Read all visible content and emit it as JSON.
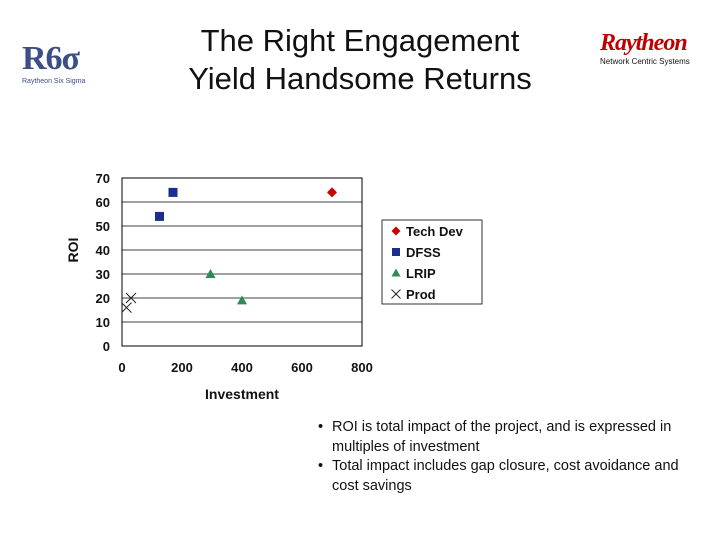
{
  "logo": {
    "mark": "R6σ",
    "subtitle": "Raytheon Six Sigma"
  },
  "title_line1": "The Right Engagement",
  "title_line2": "Yield Handsome Returns",
  "brand": {
    "name": "Raytheon",
    "unit": "Network Centric Systems",
    "color": "#c00000"
  },
  "chart_data": {
    "type": "scatter",
    "xlabel": "Investment",
    "ylabel": "ROI",
    "xlim": [
      0,
      800
    ],
    "ylim": [
      0,
      70
    ],
    "xticks": [
      0,
      200,
      400,
      600,
      800
    ],
    "yticks": [
      0,
      10,
      20,
      30,
      40,
      50,
      60,
      70
    ],
    "grid": "horizontal",
    "legend_position": "right",
    "series": [
      {
        "name": "Tech Dev",
        "marker": "diamond",
        "color": "#cc0000",
        "points": [
          [
            700,
            64
          ]
        ]
      },
      {
        "name": "DFSS",
        "marker": "square",
        "color": "#1a2e8c",
        "points": [
          [
            170,
            64
          ],
          [
            125,
            54
          ]
        ]
      },
      {
        "name": "LRIP",
        "marker": "triangle",
        "color": "#2e8b57",
        "points": [
          [
            295,
            30
          ],
          [
            400,
            19
          ]
        ]
      },
      {
        "name": "Prod",
        "marker": "x",
        "color": "#222222",
        "points": [
          [
            30,
            20
          ],
          [
            15,
            16
          ]
        ]
      }
    ]
  },
  "bullets": [
    "ROI is total impact of the project, and is expressed in multiples of investment",
    "Total impact includes gap closure, cost avoidance and cost savings"
  ]
}
